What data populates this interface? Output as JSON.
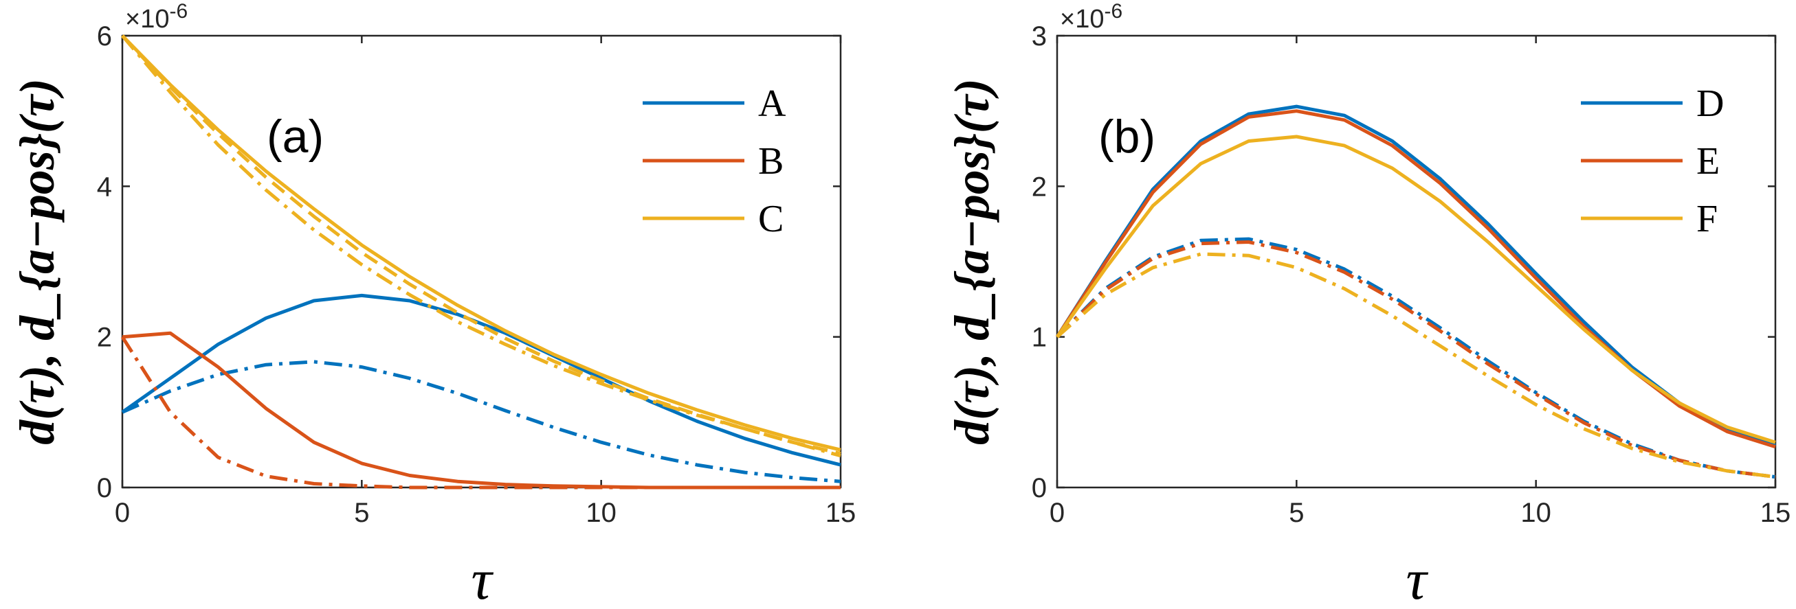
{
  "chart_data": [
    {
      "type": "line",
      "panel_label": "(a)",
      "xlabel": "τ",
      "ylabel": "d(τ), d_{a−pos}(τ)",
      "y_multiplier_label": "×10",
      "y_multiplier_exp": "-6",
      "xlim": [
        0,
        15
      ],
      "ylim": [
        0,
        6
      ],
      "xticks": [
        "0",
        "5",
        "10",
        "15"
      ],
      "yticks": [
        "0",
        "2",
        "4",
        "6"
      ],
      "grid": false,
      "legend_position": "top-right",
      "x": [
        0,
        1,
        2,
        3,
        4,
        5,
        6,
        7,
        8,
        9,
        10,
        11,
        12,
        13,
        14,
        15
      ],
      "series": [
        {
          "name": "A",
          "color": "#0072BD",
          "style": "solid",
          "values": [
            1.0,
            1.45,
            1.9,
            2.25,
            2.48,
            2.55,
            2.48,
            2.3,
            2.05,
            1.75,
            1.45,
            1.15,
            0.88,
            0.65,
            0.46,
            0.3
          ]
        },
        {
          "name": "",
          "color": "#0072BD",
          "style": "dashdot",
          "values": [
            1.0,
            1.28,
            1.5,
            1.63,
            1.67,
            1.6,
            1.45,
            1.25,
            1.02,
            0.8,
            0.6,
            0.43,
            0.3,
            0.2,
            0.13,
            0.08
          ]
        },
        {
          "name": "B",
          "color": "#D95319",
          "style": "solid",
          "values": [
            2.0,
            2.05,
            1.6,
            1.05,
            0.6,
            0.32,
            0.16,
            0.08,
            0.04,
            0.02,
            0.01,
            0.0,
            0.0,
            0.0,
            0.0,
            0.0
          ]
        },
        {
          "name": "",
          "color": "#D95319",
          "style": "dashdot",
          "values": [
            2.0,
            1.0,
            0.4,
            0.15,
            0.05,
            0.02,
            0.0,
            0.0,
            0.0,
            0.0,
            0.0,
            0.0,
            0.0,
            0.0,
            0.0,
            0.0
          ]
        },
        {
          "name": "C",
          "color": "#EDB120",
          "style": "solid",
          "values": [
            6.0,
            5.35,
            4.75,
            4.2,
            3.7,
            3.22,
            2.8,
            2.42,
            2.08,
            1.77,
            1.5,
            1.25,
            1.03,
            0.83,
            0.65,
            0.5
          ]
        },
        {
          "name": "",
          "color": "#EDB120",
          "style": "dashed",
          "values": [
            6.0,
            5.32,
            4.7,
            4.12,
            3.6,
            3.12,
            2.7,
            2.32,
            1.98,
            1.68,
            1.42,
            1.18,
            0.97,
            0.78,
            0.6,
            0.45
          ]
        },
        {
          "name": "",
          "color": "#EDB120",
          "style": "dashdot",
          "values": [
            6.0,
            5.25,
            4.55,
            3.95,
            3.42,
            2.96,
            2.56,
            2.2,
            1.9,
            1.62,
            1.38,
            1.16,
            0.96,
            0.78,
            0.6,
            0.42
          ]
        }
      ]
    },
    {
      "type": "line",
      "panel_label": "(b)",
      "xlabel": "τ",
      "ylabel": "d(τ), d_{a−pos}(τ)",
      "y_multiplier_label": "×10",
      "y_multiplier_exp": "-6",
      "xlim": [
        0,
        15
      ],
      "ylim": [
        0,
        3
      ],
      "xticks": [
        "0",
        "5",
        "10",
        "15"
      ],
      "yticks": [
        "0",
        "1",
        "2",
        "3"
      ],
      "grid": false,
      "legend_position": "top-right",
      "x": [
        0,
        1,
        2,
        3,
        4,
        5,
        6,
        7,
        8,
        9,
        10,
        11,
        12,
        13,
        14,
        15
      ],
      "series": [
        {
          "name": "D",
          "color": "#0072BD",
          "style": "solid",
          "values": [
            1.0,
            1.5,
            1.98,
            2.3,
            2.48,
            2.53,
            2.47,
            2.3,
            2.05,
            1.75,
            1.42,
            1.1,
            0.8,
            0.56,
            0.38,
            0.28
          ]
        },
        {
          "name": "",
          "color": "#0072BD",
          "style": "dashdot",
          "values": [
            1.0,
            1.32,
            1.53,
            1.64,
            1.65,
            1.58,
            1.45,
            1.27,
            1.06,
            0.84,
            0.63,
            0.44,
            0.29,
            0.18,
            0.11,
            0.07
          ]
        },
        {
          "name": "E",
          "color": "#D95319",
          "style": "solid",
          "values": [
            1.0,
            1.49,
            1.96,
            2.28,
            2.46,
            2.5,
            2.44,
            2.27,
            2.02,
            1.72,
            1.39,
            1.07,
            0.78,
            0.54,
            0.37,
            0.27
          ]
        },
        {
          "name": "",
          "color": "#D95319",
          "style": "dashdot",
          "values": [
            1.0,
            1.31,
            1.52,
            1.62,
            1.63,
            1.56,
            1.43,
            1.25,
            1.04,
            0.82,
            0.62,
            0.43,
            0.28,
            0.18,
            0.11,
            0.07
          ]
        },
        {
          "name": "F",
          "color": "#EDB120",
          "style": "solid",
          "values": [
            1.0,
            1.45,
            1.87,
            2.15,
            2.3,
            2.33,
            2.27,
            2.12,
            1.9,
            1.63,
            1.34,
            1.05,
            0.78,
            0.56,
            0.4,
            0.3
          ]
        },
        {
          "name": "",
          "color": "#EDB120",
          "style": "dashdot",
          "values": [
            1.0,
            1.28,
            1.46,
            1.55,
            1.54,
            1.46,
            1.32,
            1.14,
            0.94,
            0.74,
            0.55,
            0.39,
            0.26,
            0.17,
            0.11,
            0.07
          ]
        }
      ]
    }
  ]
}
